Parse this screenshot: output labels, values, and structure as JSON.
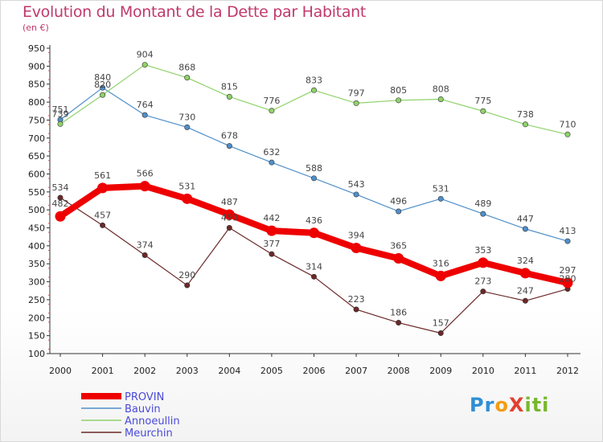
{
  "title": "Evolution du Montant de la Dette par Habitant",
  "subtitle": "(en €)",
  "logo": {
    "text": "ProXiti",
    "letters": [
      "P",
      "r",
      "o",
      "X",
      "i",
      "t",
      "i"
    ],
    "colors": [
      "#2e8fd6",
      "#2e8fd6",
      "#f39c12",
      "#e2402f",
      "#76b82a",
      "#76b82a",
      "#76b82a"
    ]
  },
  "chart_data": {
    "type": "line",
    "title": "Evolution du Montant de la Dette par Habitant",
    "ylabel": "(en €)",
    "xlabel": "",
    "ylim": [
      100,
      950
    ],
    "yticks": [
      100,
      150,
      200,
      250,
      300,
      350,
      400,
      450,
      500,
      550,
      600,
      650,
      700,
      750,
      800,
      850,
      900,
      950
    ],
    "grid": false,
    "legend_position": "bottom-left",
    "categories": [
      "2000",
      "2001",
      "2002",
      "2003",
      "2004",
      "2005",
      "2006",
      "2007",
      "2008",
      "2009",
      "2010",
      "2011",
      "2012"
    ],
    "series": [
      {
        "name": "PROVIN",
        "color": "#ee0000",
        "values": [
          482,
          561,
          566,
          531,
          487,
          442,
          436,
          394,
          365,
          316,
          353,
          324,
          297
        ]
      },
      {
        "name": "Bauvin",
        "color": "#4f8fc9",
        "values": [
          751,
          840,
          764,
          730,
          678,
          632,
          588,
          543,
          496,
          531,
          489,
          447,
          413
        ]
      },
      {
        "name": "Annoeullin",
        "color": "#8fd26a",
        "values": [
          739,
          820,
          904,
          868,
          815,
          776,
          833,
          797,
          805,
          808,
          775,
          738,
          710
        ]
      },
      {
        "name": "Meurchin",
        "color": "#6b2828",
        "values": [
          534,
          457,
          374,
          290,
          450,
          377,
          314,
          223,
          186,
          157,
          273,
          247,
          280
        ]
      }
    ]
  }
}
